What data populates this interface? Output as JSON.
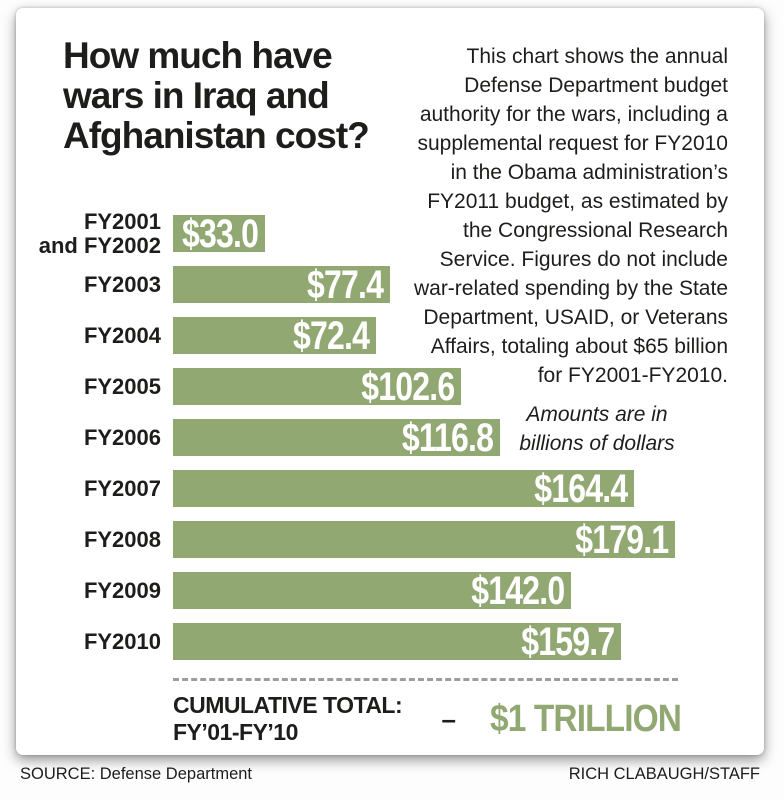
{
  "title": "How much have\nwars in Iraq and\nAfghanistan cost?",
  "description": "This chart shows the annual\nDefense Department budget\nauthority for the wars, including a\nsupplemental request for FY2010\nin the Obama administration’s\nFY2011 budget, as estimated by\nthe Congressional Research\nService. Figures do not include\nwar-related spending by the State\nDepartment, USAID, or Veterans\nAffairs, totaling about $65 billion\nfor FY2001-FY2010.",
  "note": "Amounts are in\nbillions of dollars",
  "cumulative": {
    "label": "CUMULATIVE TOTAL: FY’01-FY’10",
    "dash": "–",
    "value": "$1 TRILLION"
  },
  "footer": {
    "source": "SOURCE: Defense Department",
    "credit": "RICH CLABAUGH/STAFF"
  },
  "colors": {
    "bar_green": "#92a873",
    "accent_green": "#92a873",
    "value_text": "#ffffff",
    "text_black": "#1d1d1b",
    "dash_gray": "#9d9d9d"
  },
  "chart_data": {
    "type": "bar",
    "orientation": "horizontal",
    "title": "How much have wars in Iraq and Afghanistan cost?",
    "unit": "billions of dollars",
    "categories": [
      "FY2001\nand FY2002",
      "FY2003",
      "FY2004",
      "FY2005",
      "FY2006",
      "FY2007",
      "FY2008",
      "FY2009",
      "FY2010"
    ],
    "values": [
      33.0,
      77.4,
      72.4,
      102.6,
      116.8,
      164.4,
      179.1,
      142.0,
      159.7
    ],
    "value_labels": [
      "$33.0",
      "$77.4",
      "$72.4",
      "$102.6",
      "$116.8",
      "$164.4",
      "$179.1",
      "$142.0",
      "$159.7"
    ],
    "xlim": [
      0,
      179.1
    ],
    "grid": false,
    "legend": false,
    "cumulative_total": "$1 TRILLION"
  }
}
